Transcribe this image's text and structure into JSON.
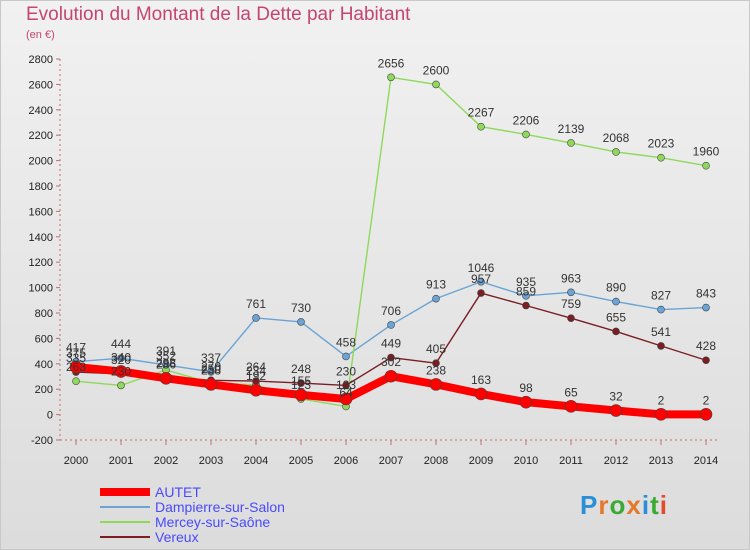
{
  "title": "Evolution du Montant de la Dette par Habitant",
  "subtitle": "(en €)",
  "logo": "Proxiti",
  "chart_data": {
    "type": "line",
    "x": [
      2000,
      2001,
      2002,
      2003,
      2004,
      2005,
      2006,
      2007,
      2008,
      2009,
      2010,
      2011,
      2012,
      2013,
      2014
    ],
    "ylim": [
      -200,
      2800
    ],
    "yticks": [
      -200,
      0,
      200,
      400,
      600,
      800,
      1000,
      1200,
      1400,
      1600,
      1800,
      2000,
      2200,
      2400,
      2600,
      2800
    ],
    "grid": false,
    "legend_position": "bottom",
    "series": [
      {
        "name": "AUTET",
        "color": "#ff0000",
        "values": [
          375,
          340,
          286,
          238,
          192,
          155,
          123,
          302,
          238,
          163,
          98,
          65,
          32,
          2,
          2
        ]
      },
      {
        "name": "Dampierre-sur-Salon",
        "color": "#6aa3d5",
        "values": [
          417,
          444,
          391,
          337,
          761,
          730,
          458,
          706,
          913,
          1046,
          935,
          963,
          890,
          827,
          843
        ]
      },
      {
        "name": "Mercey-sur-Saône",
        "color": "#8ed95a",
        "values": [
          263,
          230,
          352,
          250,
          234,
          123,
          64,
          2656,
          2600,
          2267,
          2206,
          2139,
          2068,
          2023,
          1960
        ]
      },
      {
        "name": "Vereux",
        "color": "#7a1e24",
        "values": [
          335,
          320,
          298,
          270,
          264,
          248,
          230,
          449,
          405,
          957,
          859,
          759,
          655,
          541,
          428
        ]
      }
    ]
  },
  "legend": [
    {
      "label": "AUTET",
      "color": "#ff0000"
    },
    {
      "label": "Dampierre-sur-Salon",
      "color": "#6aa3d5"
    },
    {
      "label": "Mercey-sur-Saône",
      "color": "#8ed95a"
    },
    {
      "label": "Vereux",
      "color": "#7a1e24"
    }
  ]
}
